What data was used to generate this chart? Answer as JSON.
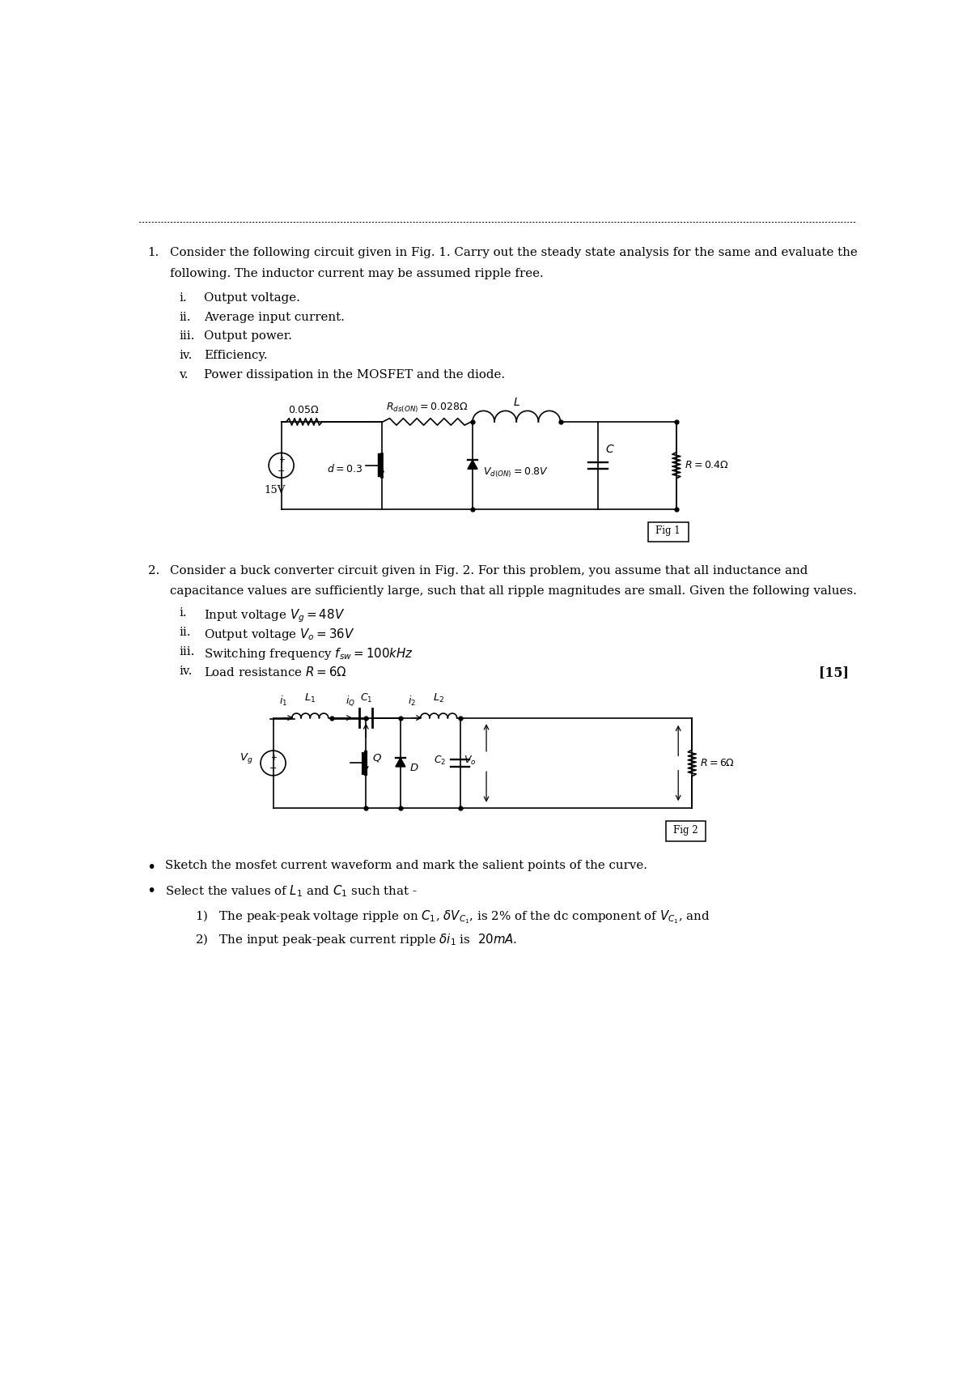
{
  "background_color": "#ffffff",
  "page_width": 12.0,
  "page_height": 16.97
}
